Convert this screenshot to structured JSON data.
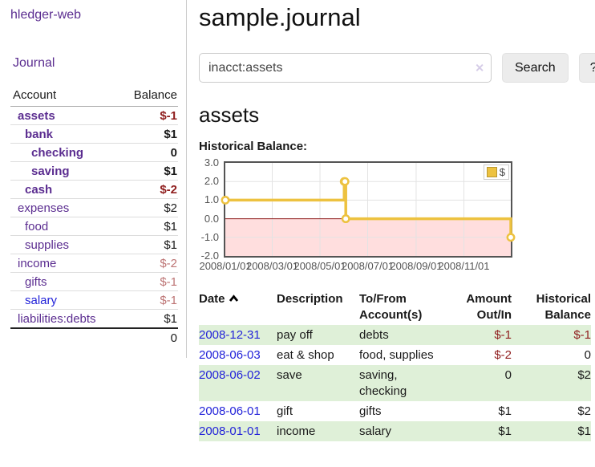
{
  "colors": {
    "link_purple": "#5b2d90",
    "link_blue": "#2323d9",
    "negative_strong": "#8f1d1d",
    "negative_soft": "#bd7474",
    "row_green": "#dff0d8",
    "series_gold": "#edc240"
  },
  "sidebar": {
    "brand": "hledger-web",
    "journal_link": "Journal",
    "accounts_table": {
      "account_header": "Account",
      "balance_header": "Balance",
      "rows": [
        {
          "name": "assets",
          "balance": "$-1",
          "depth": 1,
          "bold": true,
          "neg": "strong",
          "blue": false
        },
        {
          "name": "bank",
          "balance": "$1",
          "depth": 2,
          "bold": true,
          "neg": "",
          "blue": false
        },
        {
          "name": "checking",
          "balance": "0",
          "depth": 3,
          "bold": true,
          "neg": "",
          "blue": false
        },
        {
          "name": "saving",
          "balance": "$1",
          "depth": 3,
          "bold": true,
          "neg": "",
          "blue": false
        },
        {
          "name": "cash",
          "balance": "$-2",
          "depth": 2,
          "bold": true,
          "neg": "strong",
          "blue": false
        },
        {
          "name": "expenses",
          "balance": "$2",
          "depth": 1,
          "bold": false,
          "neg": "",
          "blue": false
        },
        {
          "name": "food",
          "balance": "$1",
          "depth": 2,
          "bold": false,
          "neg": "",
          "blue": false
        },
        {
          "name": "supplies",
          "balance": "$1",
          "depth": 2,
          "bold": false,
          "neg": "",
          "blue": false
        },
        {
          "name": "income",
          "balance": "$-2",
          "depth": 1,
          "bold": false,
          "neg": "soft",
          "blue": false
        },
        {
          "name": "gifts",
          "balance": "$-1",
          "depth": 2,
          "bold": false,
          "neg": "soft",
          "blue": false
        },
        {
          "name": "salary",
          "balance": "$-1",
          "depth": 2,
          "bold": false,
          "neg": "soft",
          "blue": true
        },
        {
          "name": "liabilities:debts",
          "balance": "$1",
          "depth": 1,
          "bold": false,
          "neg": "",
          "blue": false
        }
      ],
      "total": "0"
    }
  },
  "main": {
    "title": "sample.journal",
    "search": {
      "value": "inacct:assets",
      "clear_icon": "✕",
      "search_button": "Search",
      "help_button": "?"
    },
    "account_title": "assets",
    "chart_label": "Historical Balance:"
  },
  "chart_data": {
    "type": "line",
    "style": "step",
    "title": "Historical Balance",
    "legend": [
      {
        "label": "$",
        "color": "#edc240"
      }
    ],
    "legend_position": "top-right",
    "x_axis": {
      "unit": "date",
      "domain_days": [
        0,
        365
      ],
      "ticks": [
        {
          "day": 0,
          "label": "2008/01/01"
        },
        {
          "day": 60,
          "label": "2008/03/01"
        },
        {
          "day": 121,
          "label": "2008/05/01"
        },
        {
          "day": 182,
          "label": "2008/07/01"
        },
        {
          "day": 244,
          "label": "2008/09/01"
        },
        {
          "day": 305,
          "label": "2008/11/01"
        }
      ]
    },
    "y_axis": {
      "domain": [
        -2,
        3
      ],
      "ticks": [
        {
          "value": 3,
          "label": "3.0"
        },
        {
          "value": 2,
          "label": "2.0"
        },
        {
          "value": 1,
          "label": "1.0"
        },
        {
          "value": 0,
          "label": "0.0"
        },
        {
          "value": -1,
          "label": "-1.0"
        },
        {
          "value": -2,
          "label": "-2.0"
        }
      ]
    },
    "series": [
      {
        "name": "$",
        "color": "#edc240",
        "points": [
          {
            "date": "2008-01-01",
            "day": 0,
            "value": 1
          },
          {
            "date": "2008-06-01",
            "day": 152,
            "value": 2
          },
          {
            "date": "2008-06-02",
            "day": 153,
            "value": 2
          },
          {
            "date": "2008-06-03",
            "day": 154,
            "value": 0
          },
          {
            "date": "2008-12-31",
            "day": 365,
            "value": -1
          }
        ]
      }
    ],
    "grid": {
      "on": true,
      "color": "#e3e3e3",
      "border_color": "#545454",
      "zero_line_color": "#8b1a1a",
      "negative_fill": "rgba(255,0,0,0.13)"
    }
  },
  "register_table": {
    "headers": {
      "date": "Date",
      "description": "Description",
      "accounts": "To/From Account(s)",
      "amount": "Amount Out/In",
      "balance": "Historical Balance"
    },
    "sort_icon": "chevron-up",
    "rows": [
      {
        "date": "2008-12-31",
        "description": "pay off",
        "accounts": "debts",
        "amount": "$-1",
        "amount_neg": true,
        "balance": "$-1",
        "balance_neg": true
      },
      {
        "date": "2008-06-03",
        "description": "eat & shop",
        "accounts": "food, supplies",
        "amount": "$-2",
        "amount_neg": true,
        "balance": "0",
        "balance_neg": false
      },
      {
        "date": "2008-06-02",
        "description": "save",
        "accounts": "saving, checking",
        "amount": "0",
        "amount_neg": false,
        "balance": "$2",
        "balance_neg": false
      },
      {
        "date": "2008-06-01",
        "description": "gift",
        "accounts": "gifts",
        "amount": "$1",
        "amount_neg": false,
        "balance": "$2",
        "balance_neg": false
      },
      {
        "date": "2008-01-01",
        "description": "income",
        "accounts": "salary",
        "amount": "$1",
        "amount_neg": false,
        "balance": "$1",
        "balance_neg": false
      }
    ]
  }
}
